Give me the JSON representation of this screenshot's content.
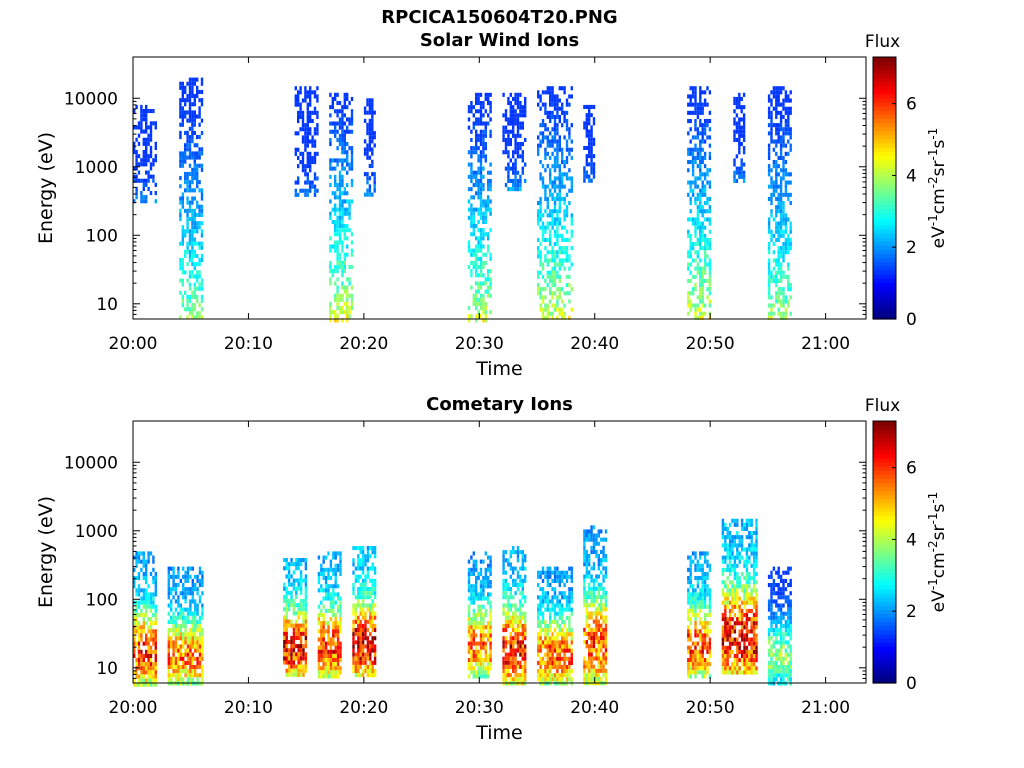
{
  "figure": {
    "title": "RPCICA150604T20.PNG"
  },
  "chart_data": [
    {
      "type": "heatmap",
      "title": "Solar Wind Ions",
      "xlabel": "Time",
      "ylabel": "Energy (eV)",
      "yscale": "log",
      "ylim": [
        6,
        40000
      ],
      "x_ticks": [
        "20:00",
        "20:10",
        "20:20",
        "20:30",
        "20:40",
        "20:50",
        "21:00"
      ],
      "y_ticks": [
        "10",
        "100",
        "1000",
        "10000"
      ],
      "colorbar": {
        "label": "Flux",
        "axis_label": "eV-1cm-2sr-1s-1",
        "range": [
          0,
          7.3
        ],
        "ticks": [
          "0",
          "2",
          "4",
          "6"
        ],
        "colormap": "jet"
      },
      "bursts": [
        {
          "start": "20:00",
          "end": "20:02",
          "e_min": 300,
          "e_max": 8000,
          "flux_max": 2.2
        },
        {
          "start": "20:04",
          "end": "20:06",
          "e_min": 6,
          "e_max": 20000,
          "flux_max": 4.2
        },
        {
          "start": "20:14",
          "end": "20:16",
          "e_min": 400,
          "e_max": 15000,
          "flux_max": 2.0
        },
        {
          "start": "20:17",
          "end": "20:19",
          "e_min": 6,
          "e_max": 12000,
          "flux_max": 4.8
        },
        {
          "start": "20:20",
          "end": "20:21",
          "e_min": 400,
          "e_max": 10000,
          "flux_max": 2.2
        },
        {
          "start": "20:29",
          "end": "20:31",
          "e_min": 6,
          "e_max": 12000,
          "flux_max": 4.6
        },
        {
          "start": "20:32",
          "end": "20:34",
          "e_min": 500,
          "e_max": 12000,
          "flux_max": 2.2
        },
        {
          "start": "20:35",
          "end": "20:38",
          "e_min": 6,
          "e_max": 15000,
          "flux_max": 4.8
        },
        {
          "start": "20:39",
          "end": "20:40",
          "e_min": 600,
          "e_max": 8000,
          "flux_max": 2.0
        },
        {
          "start": "20:48",
          "end": "20:50",
          "e_min": 6,
          "e_max": 15000,
          "flux_max": 4.8
        },
        {
          "start": "20:52",
          "end": "20:53",
          "e_min": 600,
          "e_max": 12000,
          "flux_max": 2.2
        },
        {
          "start": "20:55",
          "end": "20:57",
          "e_min": 6,
          "e_max": 15000,
          "flux_max": 4.4
        }
      ]
    },
    {
      "type": "heatmap",
      "title": "Cometary Ions",
      "xlabel": "Time",
      "ylabel": "Energy (eV)",
      "yscale": "log",
      "ylim": [
        6,
        40000
      ],
      "x_ticks": [
        "20:00",
        "20:10",
        "20:20",
        "20:30",
        "20:40",
        "20:50",
        "21:00"
      ],
      "y_ticks": [
        "10",
        "100",
        "1000",
        "10000"
      ],
      "colorbar": {
        "label": "Flux",
        "axis_label": "eV-1cm-2sr-1s-1",
        "range": [
          0,
          7.3
        ],
        "ticks": [
          "0",
          "2",
          "4",
          "6"
        ],
        "colormap": "jet"
      },
      "bursts": [
        {
          "start": "20:00",
          "end": "20:02",
          "e_min": 6,
          "e_max": 500,
          "flux_max": 6.4
        },
        {
          "start": "20:03",
          "end": "20:06",
          "e_min": 6,
          "e_max": 300,
          "flux_max": 6.0
        },
        {
          "start": "20:13",
          "end": "20:15",
          "e_min": 8,
          "e_max": 400,
          "flux_max": 7.0
        },
        {
          "start": "20:16",
          "end": "20:18",
          "e_min": 8,
          "e_max": 500,
          "flux_max": 6.5
        },
        {
          "start": "20:19",
          "end": "20:21",
          "e_min": 8,
          "e_max": 600,
          "flux_max": 7.2
        },
        {
          "start": "20:29",
          "end": "20:31",
          "e_min": 8,
          "e_max": 500,
          "flux_max": 6.0
        },
        {
          "start": "20:32",
          "end": "20:34",
          "e_min": 6,
          "e_max": 600,
          "flux_max": 6.8
        },
        {
          "start": "20:35",
          "end": "20:38",
          "e_min": 6,
          "e_max": 300,
          "flux_max": 6.2
        },
        {
          "start": "20:39",
          "end": "20:41",
          "e_min": 6,
          "e_max": 1200,
          "flux_max": 6.2
        },
        {
          "start": "20:48",
          "end": "20:50",
          "e_min": 8,
          "e_max": 500,
          "flux_max": 6.4
        },
        {
          "start": "20:51",
          "end": "20:54",
          "e_min": 8,
          "e_max": 1500,
          "flux_max": 7.0
        },
        {
          "start": "20:55",
          "end": "20:57",
          "e_min": 6,
          "e_max": 300,
          "flux_max": 4.0
        }
      ]
    }
  ]
}
